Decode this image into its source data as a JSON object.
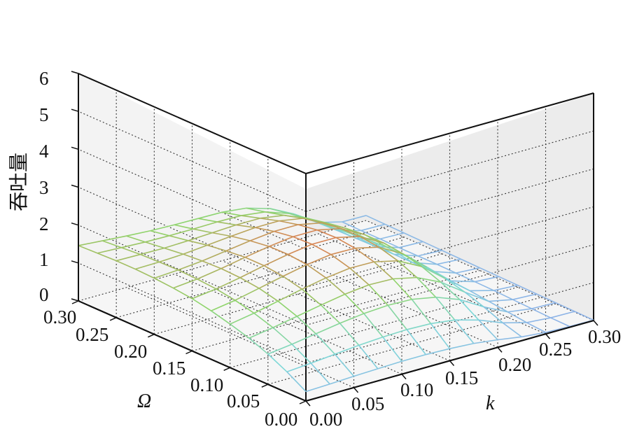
{
  "chart_data": {
    "type": "surface",
    "title": "",
    "xlabel": "k",
    "ylabel": "Ω",
    "zlabel": "吞吐量",
    "xlim": [
      0,
      0.3
    ],
    "ylim": [
      0,
      0.3
    ],
    "zlim": [
      0,
      6
    ],
    "x_ticks": [
      "0.00",
      "0.05",
      "0.10",
      "0.15",
      "0.20",
      "0.25",
      "0.30"
    ],
    "y_ticks": [
      "0.00",
      "0.05",
      "0.10",
      "0.15",
      "0.20",
      "0.25",
      "0.30"
    ],
    "z_ticks": [
      "0",
      "1",
      "2",
      "3",
      "4",
      "5",
      "6"
    ],
    "grid": true,
    "colormap_low": "#8fb3e8",
    "colormap_mid": "#7ed8d8",
    "colormap_green": "#8fd46a",
    "colormap_high": "#e07a50",
    "surface": {
      "k": [
        0.0,
        0.025,
        0.05,
        0.075,
        0.1,
        0.125,
        0.15,
        0.175,
        0.2,
        0.225,
        0.25,
        0.275,
        0.3
      ],
      "omega": [
        0.0,
        0.025,
        0.05,
        0.075,
        0.1,
        0.125,
        0.15,
        0.175,
        0.2,
        0.225,
        0.25,
        0.275,
        0.3
      ],
      "z": [
        [
          0.25,
          0.27,
          0.3,
          0.32,
          0.34,
          0.34,
          0.32,
          0.28,
          0.2,
          0.1,
          0.04,
          0.02,
          0.01
        ],
        [
          0.55,
          0.6,
          0.66,
          0.72,
          0.76,
          0.78,
          0.76,
          0.68,
          0.5,
          0.25,
          0.08,
          0.03,
          0.02
        ],
        [
          0.8,
          0.88,
          0.98,
          1.08,
          1.16,
          1.2,
          1.18,
          1.06,
          0.82,
          0.45,
          0.14,
          0.05,
          0.03
        ],
        [
          1.0,
          1.1,
          1.22,
          1.34,
          1.45,
          1.52,
          1.5,
          1.36,
          1.06,
          0.62,
          0.2,
          0.07,
          0.04
        ],
        [
          1.15,
          1.26,
          1.4,
          1.54,
          1.66,
          1.74,
          1.73,
          1.58,
          1.25,
          0.75,
          0.26,
          0.09,
          0.05
        ],
        [
          1.28,
          1.38,
          1.52,
          1.66,
          1.79,
          1.88,
          1.87,
          1.72,
          1.37,
          0.84,
          0.3,
          0.1,
          0.06
        ],
        [
          1.38,
          1.46,
          1.58,
          1.72,
          1.84,
          1.93,
          1.93,
          1.78,
          1.43,
          0.89,
          0.33,
          0.11,
          0.07
        ],
        [
          1.44,
          1.5,
          1.6,
          1.72,
          1.83,
          1.91,
          1.91,
          1.77,
          1.43,
          0.9,
          0.34,
          0.12,
          0.08
        ],
        [
          1.48,
          1.52,
          1.58,
          1.67,
          1.76,
          1.83,
          1.83,
          1.7,
          1.38,
          0.88,
          0.34,
          0.12,
          0.09
        ],
        [
          1.5,
          1.51,
          1.54,
          1.6,
          1.66,
          1.71,
          1.71,
          1.6,
          1.3,
          0.84,
          0.33,
          0.12,
          0.1
        ],
        [
          1.5,
          1.49,
          1.48,
          1.5,
          1.53,
          1.56,
          1.56,
          1.46,
          1.2,
          0.79,
          0.32,
          0.13,
          0.11
        ],
        [
          1.48,
          1.45,
          1.42,
          1.41,
          1.41,
          1.42,
          1.41,
          1.33,
          1.11,
          0.74,
          0.31,
          0.13,
          0.12
        ],
        [
          1.46,
          1.41,
          1.36,
          1.32,
          1.3,
          1.29,
          1.28,
          1.21,
          1.02,
          0.7,
          0.3,
          0.14,
          0.13
        ]
      ]
    }
  }
}
